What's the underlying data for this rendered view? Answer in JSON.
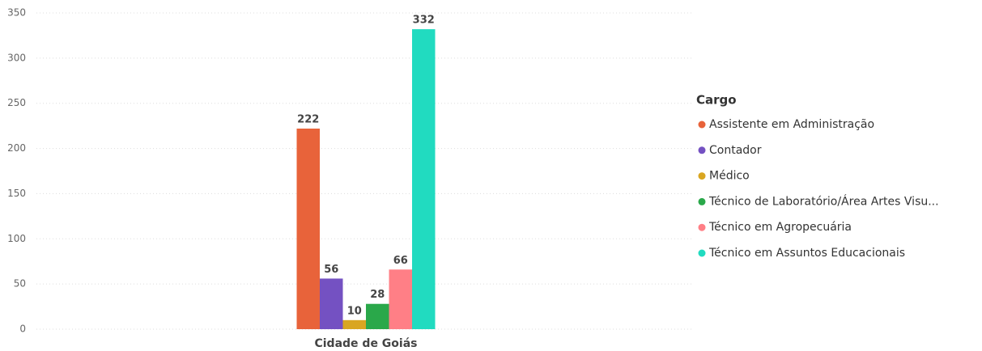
{
  "chart_data": {
    "type": "bar",
    "categories": [
      "Cidade de Goiás"
    ],
    "series": [
      {
        "name": "Assistente em Administração",
        "color": "#E8633A",
        "values": [
          222
        ]
      },
      {
        "name": "Contador",
        "color": "#7451C2",
        "values": [
          56
        ]
      },
      {
        "name": "Médico",
        "color": "#D9A621",
        "values": [
          10
        ]
      },
      {
        "name": "Técnico de Laboratório/Área Artes Visu...",
        "color": "#2AA84A",
        "values": [
          28
        ]
      },
      {
        "name": "Técnico em Agropecuária",
        "color": "#FF7F86",
        "values": [
          66
        ]
      },
      {
        "name": "Técnico em Assuntos Educacionais",
        "color": "#21DBC0",
        "values": [
          332
        ]
      }
    ],
    "legend_title": "Cargo",
    "legend": "right",
    "ylim": [
      0,
      350
    ],
    "yticks": [
      0,
      50,
      100,
      150,
      200,
      250,
      300,
      350
    ],
    "grid": true
  }
}
